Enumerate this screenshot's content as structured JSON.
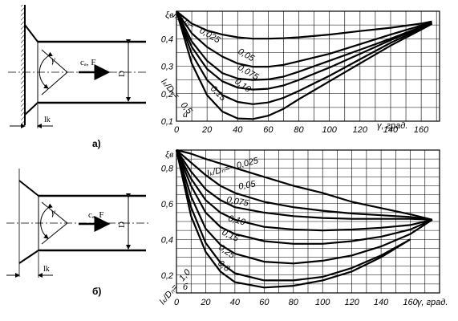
{
  "figure": {
    "top_label": "а)",
    "bottom_label": "б)"
  },
  "sketch": {
    "gamma": "γ",
    "flow": "cₐ, F",
    "diameter": "D",
    "length": "lk"
  },
  "chart_data": [
    {
      "type": "line",
      "panel_letter": "а",
      "ylabel": "ξв",
      "xlabel": "γ, град.",
      "xlim": [
        0,
        172
      ],
      "ylim": [
        0.1,
        0.5
      ],
      "x_ticks": [
        "0",
        "20",
        "40",
        "60",
        "80",
        "100",
        "120",
        "140",
        "160"
      ],
      "y_ticks": [
        "0,1",
        "0,2",
        "0,3",
        "0,4"
      ],
      "grid": true,
      "legend_prefix": "lₖ/Dₙ=",
      "series_labels": [
        "0,025",
        "0,05",
        "0,075",
        "0,10",
        "0,15",
        "0,5"
      ],
      "series": [
        {
          "name": "lₖ/Dₙ=0,025",
          "x": [
            0,
            10,
            20,
            30,
            40,
            50,
            60,
            70,
            80,
            100,
            120,
            140,
            160,
            167
          ],
          "y": [
            0.5,
            0.455,
            0.43,
            0.415,
            0.405,
            0.4,
            0.4,
            0.402,
            0.405,
            0.415,
            0.428,
            0.44,
            0.455,
            0.463
          ]
        },
        {
          "name": "lₖ/Dₙ=0,05",
          "x": [
            0,
            10,
            20,
            30,
            40,
            50,
            60,
            70,
            80,
            100,
            120,
            140,
            160,
            167
          ],
          "y": [
            0.5,
            0.42,
            0.37,
            0.335,
            0.31,
            0.298,
            0.298,
            0.305,
            0.318,
            0.345,
            0.38,
            0.415,
            0.448,
            0.46
          ]
        },
        {
          "name": "lₖ/Dₙ=0,075",
          "x": [
            0,
            10,
            20,
            30,
            40,
            50,
            60,
            70,
            80,
            100,
            120,
            140,
            160,
            167
          ],
          "y": [
            0.5,
            0.39,
            0.32,
            0.275,
            0.255,
            0.25,
            0.252,
            0.262,
            0.28,
            0.32,
            0.36,
            0.4,
            0.443,
            0.458
          ]
        },
        {
          "name": "lₖ/Dₙ=0,10",
          "x": [
            0,
            10,
            20,
            30,
            40,
            50,
            60,
            70,
            80,
            100,
            120,
            140,
            160,
            167
          ],
          "y": [
            0.5,
            0.37,
            0.29,
            0.245,
            0.222,
            0.215,
            0.218,
            0.23,
            0.25,
            0.295,
            0.345,
            0.395,
            0.44,
            0.456
          ]
        },
        {
          "name": "lₖ/Dₙ=0,15",
          "x": [
            0,
            10,
            20,
            30,
            40,
            50,
            60,
            70,
            80,
            100,
            120,
            140,
            160,
            167
          ],
          "y": [
            0.5,
            0.345,
            0.25,
            0.195,
            0.17,
            0.162,
            0.168,
            0.185,
            0.21,
            0.265,
            0.325,
            0.385,
            0.437,
            0.455
          ]
        },
        {
          "name": "lₖ/Dₙ=0,5",
          "x": [
            0,
            10,
            20,
            30,
            40,
            50,
            60,
            70,
            80,
            100,
            120,
            140,
            160,
            167
          ],
          "y": [
            0.5,
            0.31,
            0.195,
            0.135,
            0.11,
            0.108,
            0.12,
            0.145,
            0.18,
            0.245,
            0.31,
            0.375,
            0.433,
            0.454
          ]
        }
      ]
    },
    {
      "type": "line",
      "panel_letter": "б",
      "ylabel": "ξв",
      "xlabel": "γ, град.",
      "xlim": [
        0,
        180
      ],
      "ylim": [
        0.1,
        0.9
      ],
      "x_ticks": [
        "0",
        "20",
        "40",
        "60",
        "80",
        "100",
        "120",
        "140",
        "160"
      ],
      "y_ticks": [
        "0,2",
        "0,4",
        "0,6",
        "0,8"
      ],
      "grid": true,
      "legend_prefix": "lₖ/Dₙ=",
      "series_labels": [
        "0,025",
        "0,05",
        "0,075",
        "0,10",
        "0,15",
        "0,25",
        "0,6",
        "1,0"
      ],
      "series": [
        {
          "name": "lₖ/Dₙ=0,025",
          "x": [
            0,
            10,
            20,
            40,
            60,
            80,
            100,
            120,
            140,
            160,
            175
          ],
          "y": [
            0.9,
            0.88,
            0.85,
            0.8,
            0.75,
            0.7,
            0.66,
            0.61,
            0.575,
            0.54,
            0.51
          ]
        },
        {
          "name": "lₖ/Dₙ=0,05",
          "x": [
            0,
            10,
            20,
            30,
            40,
            60,
            80,
            100,
            120,
            140,
            160,
            175
          ],
          "y": [
            0.9,
            0.83,
            0.76,
            0.7,
            0.66,
            0.61,
            0.58,
            0.56,
            0.545,
            0.535,
            0.525,
            0.51
          ]
        },
        {
          "name": "lₖ/Dₙ=0,075",
          "x": [
            0,
            10,
            20,
            30,
            40,
            60,
            80,
            100,
            120,
            140,
            160,
            175
          ],
          "y": [
            0.9,
            0.78,
            0.68,
            0.62,
            0.58,
            0.55,
            0.53,
            0.52,
            0.515,
            0.515,
            0.515,
            0.51
          ]
        },
        {
          "name": "lₖ/Dₙ=0,10",
          "x": [
            0,
            10,
            20,
            30,
            40,
            60,
            80,
            100,
            120,
            140,
            160,
            175
          ],
          "y": [
            0.9,
            0.74,
            0.62,
            0.55,
            0.51,
            0.47,
            0.455,
            0.45,
            0.455,
            0.465,
            0.48,
            0.51
          ]
        },
        {
          "name": "lₖ/Dₙ=0,15",
          "x": [
            0,
            10,
            20,
            30,
            40,
            60,
            80,
            100,
            120,
            140,
            160,
            175
          ],
          "y": [
            0.9,
            0.7,
            0.55,
            0.47,
            0.43,
            0.39,
            0.375,
            0.375,
            0.39,
            0.415,
            0.455,
            0.51
          ]
        },
        {
          "name": "lₖ/Dₙ=0,25",
          "x": [
            0,
            10,
            20,
            30,
            40,
            60,
            80,
            100,
            120,
            140,
            160,
            175
          ],
          "y": [
            0.9,
            0.64,
            0.46,
            0.37,
            0.32,
            0.275,
            0.265,
            0.28,
            0.31,
            0.36,
            0.43,
            0.51
          ]
        },
        {
          "name": "lₖ/Dₙ=0,6",
          "x": [
            0,
            10,
            20,
            30,
            40,
            60,
            80,
            100,
            120,
            140,
            160
          ],
          "y": [
            0.9,
            0.58,
            0.38,
            0.27,
            0.21,
            0.17,
            0.17,
            0.19,
            0.24,
            0.31,
            0.4
          ]
        },
        {
          "name": "lₖ/Dₙ=1,0",
          "x": [
            0,
            10,
            20,
            30,
            40,
            60,
            80,
            100,
            120,
            140,
            160
          ],
          "y": [
            0.9,
            0.53,
            0.33,
            0.22,
            0.16,
            0.13,
            0.14,
            0.17,
            0.22,
            0.3,
            0.4
          ]
        }
      ]
    }
  ]
}
